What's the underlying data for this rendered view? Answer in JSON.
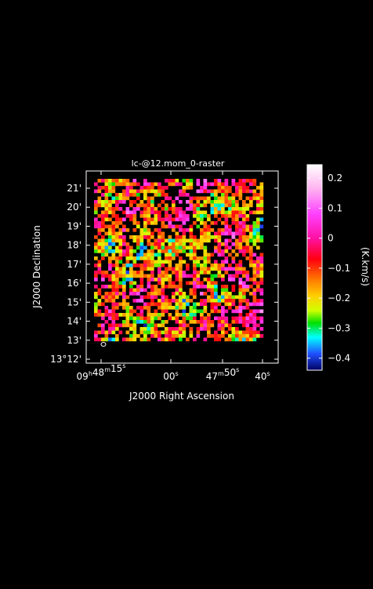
{
  "chart_data": {
    "type": "heatmap",
    "title": "lc-@12.mom_0-raster",
    "xlabel": "J2000 Right Ascension",
    "ylabel": "J2000 Declination",
    "x_ticks": [
      {
        "label": "09h48m15s",
        "pre": "09",
        "hsup": "h",
        "mid": "48",
        "msup": "m",
        "num": "15",
        "sup": "s"
      },
      {
        "label": "00s",
        "num": "00",
        "sup": "s"
      },
      {
        "label": "47m50s",
        "pre": "47",
        "msup": "m",
        "num": "50",
        "sup": "s"
      },
      {
        "label": "40s",
        "num": "40",
        "sup": "s"
      }
    ],
    "y_ticks": [
      "13°12'",
      "13'",
      "14'",
      "15'",
      "16'",
      "17'",
      "18'",
      "19'",
      "20'",
      "21'"
    ],
    "y_values_arcmin": [
      12,
      13,
      14,
      15,
      16,
      17,
      18,
      19,
      20,
      21
    ],
    "colorbar": {
      "label": "(K.km/s)",
      "range": [
        -0.44,
        0.245
      ],
      "ticks": [
        0.2,
        0.1,
        0,
        -0.1,
        -0.2,
        -0.3,
        -0.4
      ],
      "tick_labels": [
        "0.2",
        "0.1",
        "0",
        "−0.1",
        "−0.2",
        "−0.3",
        "−0.4"
      ]
    },
    "colormap": "white-pink-magenta-red-orange-yellow-green-cyan-blue-navy",
    "beam_marker": "ellipse bottom-left",
    "grid": false,
    "background_color": "#000000"
  }
}
